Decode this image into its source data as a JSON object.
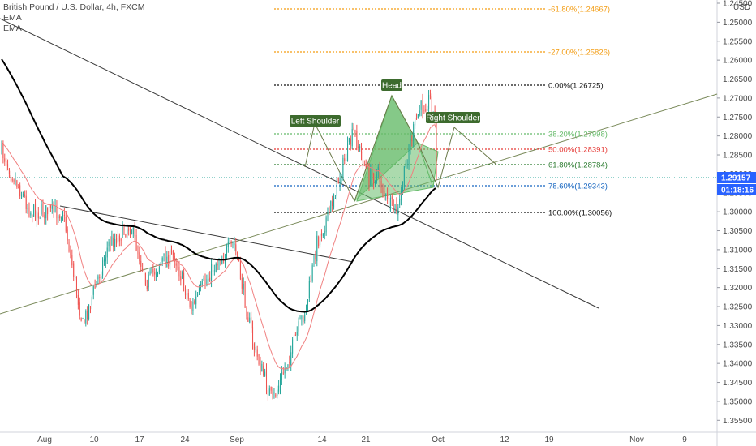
{
  "legend": {
    "symbol": "British Pound / U.S. Dollar, 4h, FXCM",
    "ema_fast": "EMA",
    "ema_slow": "EMA"
  },
  "colors": {
    "up": "#26a69a",
    "down": "#ef5350",
    "ema_fast": "#f08080",
    "ema_slow": "#000000",
    "pattern_fill": "#66bb6a",
    "pattern_label": "#3d6b2e",
    "price_tag": "#2962ff"
  },
  "chart_data": {
    "type": "candlestick",
    "inverted_y": true,
    "currency": "USD",
    "y_tick_values": [
      1.245,
      1.25,
      1.255,
      1.26,
      1.265,
      1.27,
      1.275,
      1.28,
      1.285,
      1.29,
      1.295,
      1.3,
      1.305,
      1.31,
      1.315,
      1.32,
      1.325,
      1.33,
      1.335,
      1.34,
      1.345,
      1.35,
      1.355
    ],
    "y_tick_labels": [
      "1.24500",
      "1.25000",
      "1.25500",
      "1.26000",
      "1.26500",
      "1.27000",
      "1.27500",
      "1.28000",
      "1.28500",
      "1.29000",
      "1.29500",
      "1.30000",
      "1.30500",
      "1.31000",
      "1.31500",
      "1.32000",
      "1.32500",
      "1.33000",
      "1.33500",
      "1.34000",
      "1.34500",
      "1.35000",
      "1.35500"
    ],
    "x_labels": [
      "Aug",
      "10",
      "17",
      "24",
      "Sep",
      "14",
      "21",
      "Oct",
      "12",
      "19",
      "Nov",
      "9"
    ],
    "last_price": "1.29157",
    "countdown": "01:18:16",
    "fib_levels": [
      {
        "ratio": "-61.80%",
        "price": "1.24667"
      },
      {
        "ratio": "-27.00%",
        "price": "1.25826"
      },
      {
        "ratio": "0.00%",
        "price": "1.26725"
      },
      {
        "ratio": "38.20%",
        "price": "1.27998"
      },
      {
        "ratio": "50.00%",
        "price": "1.28391"
      },
      {
        "ratio": "61.80%",
        "price": "1.28784"
      },
      {
        "ratio": "78.60%",
        "price": "1.29343"
      },
      {
        "ratio": "100.00%",
        "price": "1.30056"
      }
    ],
    "pattern_labels": {
      "left": "Left Shoulder",
      "head": "Head",
      "right": "Right Shoulder"
    },
    "key_closes": [
      1.284,
      1.3,
      1.3,
      1.33,
      1.3085,
      1.3035,
      1.3185,
      1.3128,
      1.3115,
      1.3255,
      1.32,
      1.3135,
      1.3085,
      1.336,
      1.35,
      1.338,
      1.325,
      1.308,
      1.3,
      1.289,
      1.279,
      1.291,
      1.29,
      1.298,
      1.3,
      1.283,
      1.273,
      1.27,
      1.285,
      1.293,
      1.285,
      1.291
    ]
  }
}
